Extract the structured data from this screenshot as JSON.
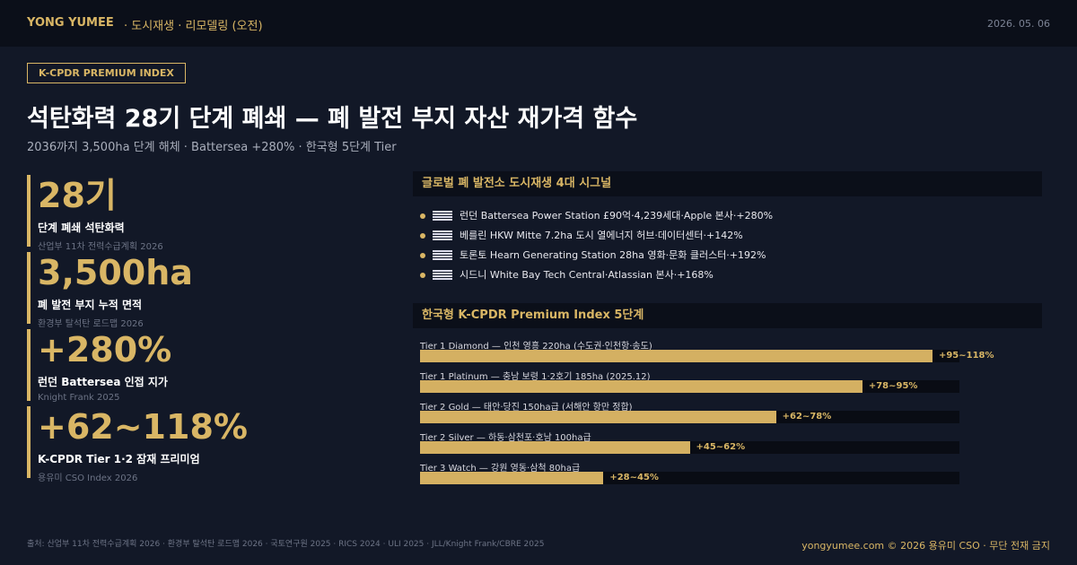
{
  "header": {
    "brand": "YONG YUMEE",
    "section": "도시재생 · 리모델링 (오전)",
    "date": "2026. 05. 06"
  },
  "badge": "K-CPDR PREMIUM INDEX",
  "title": "석탄화력 28기 단계 폐쇄 — 폐 발전 부지 자산 재가격 함수",
  "subtitle": "2036까지 3,500ha 단계 해체 · Battersea +280% · 한국형 5단계 Tier",
  "stats": [
    {
      "value": "28기",
      "label": "단계 폐쇄 석탄화력",
      "source": "산업부 11차 전력수급계획 2026"
    },
    {
      "value": "3,500ha",
      "label": "폐 발전 부지 누적 면적",
      "source": "환경부 탈석탄 로드맵 2026"
    },
    {
      "value": "+280%",
      "label": "런던 Battersea 인접 지가",
      "source": "Knight Frank 2025"
    },
    {
      "value": "+62~118%",
      "label": "K-CPDR Tier 1·2 잠재 프리미엄",
      "source": "용유미 CSO Index 2026"
    }
  ],
  "signals": {
    "title": "글로벌 폐 발전소 도시재생 4대 시그널",
    "items": [
      "런던 Battersea Power Station £90억·4,239세대·Apple 본사·+280%",
      "베를린 HKW Mitte 7.2ha 도시 열에너지 허브·데이터센터·+142%",
      "토론토 Hearn Generating Station 28ha 영화·문화 클러스터·+192%",
      "시드니 White Bay Tech Central·Atlassian 본사·+168%"
    ]
  },
  "tiers": {
    "title": "한국형 K-CPDR Premium Index 5단계",
    "xlim": [
      0,
      100
    ],
    "items": [
      {
        "label": "Tier 1 Diamond — 인천 영흥 220ha (수도권·인천항·송도)",
        "value_label": "+95~118%",
        "value": 95
      },
      {
        "label": "Tier 1 Platinum — 충남 보령 1·2호기 185ha (2025.12)",
        "value_label": "+78~95%",
        "value": 82
      },
      {
        "label": "Tier 2 Gold — 태안·당진 150ha급 (서해안 항만 정합)",
        "value_label": "+62~78%",
        "value": 66
      },
      {
        "label": "Tier 2 Silver — 하동·삼천포·호남 100ha급",
        "value_label": "+45~62%",
        "value": 50
      },
      {
        "label": "Tier 3 Watch — 강원 영동·삼척 80ha급",
        "value_label": "+28~45%",
        "value": 34
      }
    ]
  },
  "footer": {
    "sources": "출처: 산업부 11차 전력수급계획 2026 · 환경부 탈석탄 로드맵 2026 · 국토연구원 2025 · RICS 2024 · ULI 2025 · JLL/Knight Frank/CBRE 2025",
    "credit": "yongyumee.com  ©  2026 용유미 CSO  ·  무단 전재 금지"
  }
}
